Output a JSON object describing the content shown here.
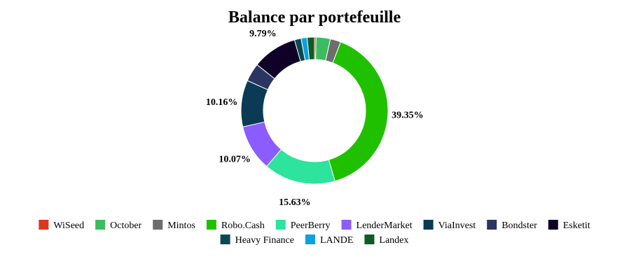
{
  "chart_data": {
    "type": "pie",
    "title": "Balance par portefeuille",
    "donut": true,
    "legend_position": "bottom",
    "series": [
      {
        "name": "WiSeed",
        "value": 0.35,
        "color": "#d9381e"
      },
      {
        "name": "October",
        "value": 3.1,
        "color": "#3cbc60"
      },
      {
        "name": "Mintos",
        "value": 2.3,
        "color": "#6d6d6d"
      },
      {
        "name": "Robo.Cash",
        "value": 39.35,
        "color": "#1fc000"
      },
      {
        "name": "PeerBerry",
        "value": 15.63,
        "color": "#2ee39d"
      },
      {
        "name": "LenderMarket",
        "value": 10.07,
        "color": "#8b5cff"
      },
      {
        "name": "ViaInvest",
        "value": 10.16,
        "color": "#0b3a55"
      },
      {
        "name": "Bondster",
        "value": 4.0,
        "color": "#2b3561"
      },
      {
        "name": "Esketit",
        "value": 9.79,
        "color": "#100028"
      },
      {
        "name": "Heavy Finance",
        "value": 1.45,
        "color": "#074a52"
      },
      {
        "name": "LANDE",
        "value": 1.3,
        "color": "#0ea0de"
      },
      {
        "name": "Landex",
        "value": 1.6,
        "color": "#0b5c25"
      }
    ],
    "labels": [
      {
        "series": "Robo.Cash",
        "text": "39.35%"
      },
      {
        "series": "PeerBerry",
        "text": "15.63%"
      },
      {
        "series": "LenderMarket",
        "text": "10.07%"
      },
      {
        "series": "ViaInvest",
        "text": "10.16%"
      },
      {
        "series": "Esketit",
        "text": "9.79%"
      }
    ]
  }
}
